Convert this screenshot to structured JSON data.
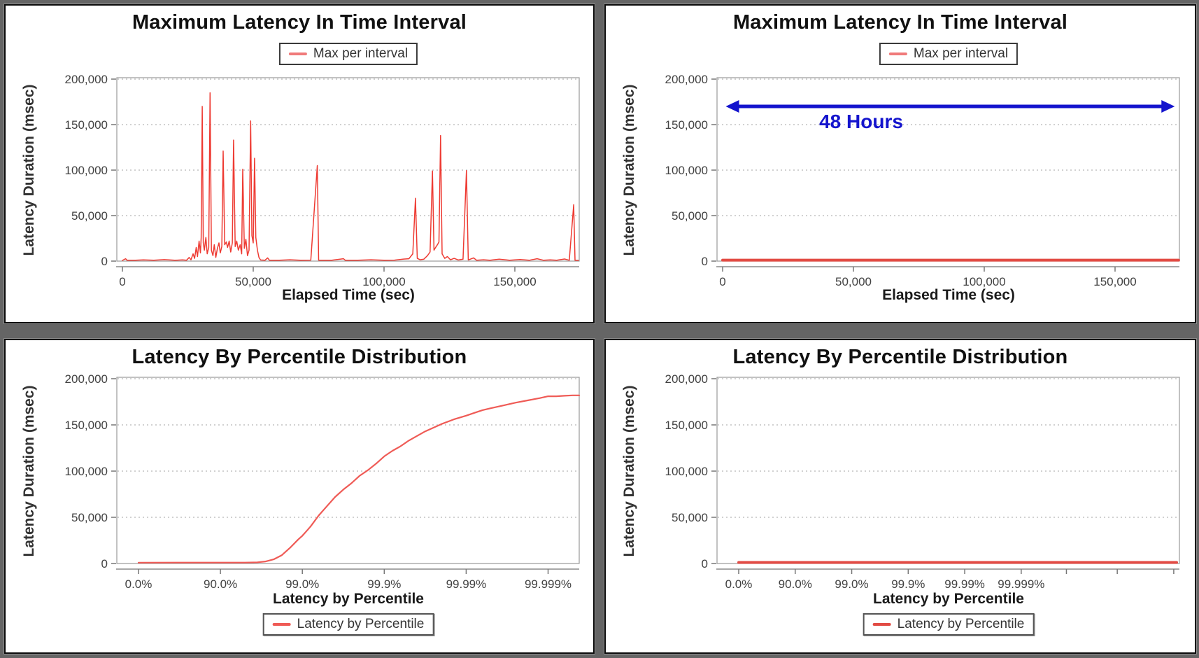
{
  "page": {
    "background": "#656565",
    "panel_background": "#ffffff",
    "panel_count": 4,
    "description_colors": {
      "spike_red": "#ee3b33",
      "flat_line_red": "#e24b44",
      "curve_red": "#ef5b56",
      "legend_swatch_red": "#f07a7a",
      "annotation_blue": "#1414cd"
    }
  },
  "chart_data": [
    {
      "id": "max-latency-interval-left",
      "type": "line",
      "title": "Maximum Latency In Time Interval",
      "legend": {
        "label": "Max per interval",
        "position": "top",
        "swatch_color": "#f07a7a"
      },
      "xlabel": "Elapsed Time (sec)",
      "ylabel": "Latency Duration (msec)",
      "x_unit": "seconds",
      "y_unit": "msec",
      "xlim": [
        0,
        174600
      ],
      "ylim": [
        0,
        200000
      ],
      "grid": "horizontal-dotted",
      "x_ticks": [
        {
          "v": 0,
          "label": "0"
        },
        {
          "v": 50000,
          "label": "50,000"
        },
        {
          "v": 100000,
          "label": "100,000"
        },
        {
          "v": 150000,
          "label": "150,000"
        }
      ],
      "y_ticks": [
        {
          "v": 0,
          "label": "0"
        },
        {
          "v": 50000,
          "label": "50,000"
        },
        {
          "v": 100000,
          "label": "100,000"
        },
        {
          "v": 150000,
          "label": "150,000"
        },
        {
          "v": 200000,
          "label": "200,000"
        }
      ],
      "line_color": "#ee3b33",
      "line_width": 1.5,
      "points": [
        [
          0,
          800
        ],
        [
          1200,
          2600
        ],
        [
          1800,
          900
        ],
        [
          5000,
          900
        ],
        [
          8000,
          1400
        ],
        [
          12000,
          900
        ],
        [
          16000,
          1600
        ],
        [
          20000,
          900
        ],
        [
          23000,
          1300
        ],
        [
          24500,
          900
        ],
        [
          25500,
          4000
        ],
        [
          26200,
          1500
        ],
        [
          27000,
          8000
        ],
        [
          27600,
          3000
        ],
        [
          28200,
          15000
        ],
        [
          28700,
          5000
        ],
        [
          29300,
          22000
        ],
        [
          29800,
          9000
        ],
        [
          30100,
          26000
        ],
        [
          30500,
          170000
        ],
        [
          30900,
          20000
        ],
        [
          31300,
          12000
        ],
        [
          31900,
          26000
        ],
        [
          32400,
          8000
        ],
        [
          33000,
          15000
        ],
        [
          33500,
          185000
        ],
        [
          34000,
          12000
        ],
        [
          34600,
          6000
        ],
        [
          35100,
          18000
        ],
        [
          35700,
          4000
        ],
        [
          36300,
          14000
        ],
        [
          36900,
          20000
        ],
        [
          37400,
          9000
        ],
        [
          38000,
          16000
        ],
        [
          38500,
          121000
        ],
        [
          39100,
          18000
        ],
        [
          39700,
          21000
        ],
        [
          40200,
          15000
        ],
        [
          40800,
          22000
        ],
        [
          41400,
          10000
        ],
        [
          42000,
          20000
        ],
        [
          42500,
          133000
        ],
        [
          43100,
          16000
        ],
        [
          43700,
          22000
        ],
        [
          44300,
          12000
        ],
        [
          45000,
          18000
        ],
        [
          45600,
          8000
        ],
        [
          46000,
          101000
        ],
        [
          46600,
          14000
        ],
        [
          47200,
          24000
        ],
        [
          47800,
          6000
        ],
        [
          48400,
          12000
        ],
        [
          49000,
          154000
        ],
        [
          49500,
          28000
        ],
        [
          50000,
          20000
        ],
        [
          50500,
          113000
        ],
        [
          51000,
          26000
        ],
        [
          51600,
          12000
        ],
        [
          52200,
          4000
        ],
        [
          52800,
          1200
        ],
        [
          54500,
          900
        ],
        [
          55500,
          3500
        ],
        [
          56200,
          900
        ],
        [
          60000,
          900
        ],
        [
          64000,
          1500
        ],
        [
          68000,
          900
        ],
        [
          72000,
          1100
        ],
        [
          74500,
          105000
        ],
        [
          75000,
          900
        ],
        [
          80000,
          900
        ],
        [
          84500,
          2600
        ],
        [
          85200,
          900
        ],
        [
          90000,
          900
        ],
        [
          95000,
          1500
        ],
        [
          100000,
          900
        ],
        [
          104000,
          1100
        ],
        [
          107500,
          2200
        ],
        [
          109500,
          2600
        ],
        [
          111000,
          8000
        ],
        [
          112000,
          69000
        ],
        [
          112700,
          3000
        ],
        [
          113800,
          1500
        ],
        [
          115200,
          2100
        ],
        [
          116600,
          6000
        ],
        [
          117600,
          10000
        ],
        [
          118500,
          99000
        ],
        [
          119100,
          12000
        ],
        [
          119700,
          15000
        ],
        [
          120400,
          18000
        ],
        [
          121000,
          21000
        ],
        [
          121600,
          138000
        ],
        [
          122200,
          8000
        ],
        [
          123200,
          3000
        ],
        [
          124200,
          5000
        ],
        [
          125400,
          1500
        ],
        [
          126800,
          3000
        ],
        [
          128400,
          1200
        ],
        [
          130200,
          2100
        ],
        [
          131500,
          99500
        ],
        [
          132200,
          1200
        ],
        [
          134200,
          3500
        ],
        [
          135400,
          900
        ],
        [
          138000,
          1500
        ],
        [
          140500,
          900
        ],
        [
          144000,
          2100
        ],
        [
          148000,
          900
        ],
        [
          152000,
          1800
        ],
        [
          155500,
          900
        ],
        [
          158500,
          2600
        ],
        [
          161000,
          900
        ],
        [
          163500,
          1300
        ],
        [
          166000,
          900
        ],
        [
          169000,
          2300
        ],
        [
          170800,
          900
        ],
        [
          172500,
          62000
        ],
        [
          173000,
          900
        ],
        [
          174300,
          800
        ]
      ]
    },
    {
      "id": "max-latency-interval-right",
      "type": "line",
      "title": "Maximum Latency In Time Interval",
      "legend": {
        "label": "Max per interval",
        "position": "top",
        "swatch_color": "#f07a7a"
      },
      "xlabel": "Elapsed Time (sec)",
      "ylabel": "Latency Duration (msec)",
      "x_unit": "seconds",
      "y_unit": "msec",
      "xlim": [
        0,
        174600
      ],
      "ylim": [
        0,
        200000
      ],
      "grid": "horizontal-dotted",
      "x_ticks": [
        {
          "v": 0,
          "label": "0"
        },
        {
          "v": 50000,
          "label": "50,000"
        },
        {
          "v": 100000,
          "label": "100,000"
        },
        {
          "v": 150000,
          "label": "150,000"
        }
      ],
      "y_ticks": [
        {
          "v": 0,
          "label": "0"
        },
        {
          "v": 50000,
          "label": "50,000"
        },
        {
          "v": 100000,
          "label": "100,000"
        },
        {
          "v": 150000,
          "label": "150,000"
        },
        {
          "v": 200000,
          "label": "200,000"
        }
      ],
      "line_color": "#e24b44",
      "line_width": 4,
      "points": [
        [
          0,
          1100
        ],
        [
          174300,
          1100
        ]
      ],
      "annotation": {
        "type": "double-headed-arrow",
        "text": "48 Hours",
        "color": "#1414cd",
        "arrow_y": 170000,
        "arrow_x_from": 1200,
        "arrow_x_to": 172800
      }
    },
    {
      "id": "latency-percentile-left",
      "type": "line",
      "title": "Latency By Percentile Distribution",
      "legend": {
        "label": "Latency by Percentile",
        "position": "bottom",
        "swatch_color": "#ef5b56"
      },
      "xlabel": "Latency by Percentile",
      "ylabel": "Latency Duration (msec)",
      "x_unit": "percentile; axis position is -log10(1-p) in decades",
      "y_unit": "msec",
      "xlim": [
        0,
        5.38
      ],
      "ylim": [
        0,
        200000
      ],
      "grid": "horizontal-dotted",
      "x_ticks": [
        {
          "v": 0,
          "label": "0.0%"
        },
        {
          "v": 1,
          "label": "90.0%"
        },
        {
          "v": 2,
          "label": "99.0%"
        },
        {
          "v": 3,
          "label": "99.9%"
        },
        {
          "v": 4,
          "label": "99.99%"
        },
        {
          "v": 5,
          "label": "99.999%"
        }
      ],
      "y_ticks": [
        {
          "v": 0,
          "label": "0"
        },
        {
          "v": 50000,
          "label": "50,000"
        },
        {
          "v": 100000,
          "label": "100,000"
        },
        {
          "v": 150000,
          "label": "150,000"
        },
        {
          "v": 200000,
          "label": "200,000"
        }
      ],
      "line_color": "#ef5b56",
      "line_width": 2.2,
      "points": [
        [
          0,
          900
        ],
        [
          0.5,
          950
        ],
        [
          1.0,
          1000
        ],
        [
          1.3,
          1000
        ],
        [
          1.45,
          1300
        ],
        [
          1.55,
          2200
        ],
        [
          1.65,
          4500
        ],
        [
          1.75,
          9000
        ],
        [
          1.85,
          17000
        ],
        [
          1.95,
          26000
        ],
        [
          2.0,
          30000
        ],
        [
          2.05,
          35000
        ],
        [
          2.1,
          40000
        ],
        [
          2.2,
          52000
        ],
        [
          2.3,
          62000
        ],
        [
          2.4,
          72000
        ],
        [
          2.5,
          80000
        ],
        [
          2.6,
          87000
        ],
        [
          2.7,
          95000
        ],
        [
          2.8,
          101000
        ],
        [
          2.9,
          108000
        ],
        [
          3.0,
          116000
        ],
        [
          3.1,
          122000
        ],
        [
          3.2,
          127000
        ],
        [
          3.3,
          133000
        ],
        [
          3.4,
          138000
        ],
        [
          3.5,
          143000
        ],
        [
          3.6,
          147000
        ],
        [
          3.7,
          151000
        ],
        [
          3.85,
          156000
        ],
        [
          4.0,
          160000
        ],
        [
          4.1,
          163000
        ],
        [
          4.2,
          166000
        ],
        [
          4.3,
          168000
        ],
        [
          4.45,
          171000
        ],
        [
          4.6,
          174000
        ],
        [
          4.75,
          176500
        ],
        [
          4.9,
          179000
        ],
        [
          5.0,
          181000
        ],
        [
          5.1,
          181000
        ],
        [
          5.2,
          181500
        ],
        [
          5.3,
          182000
        ],
        [
          5.38,
          182000
        ]
      ]
    },
    {
      "id": "latency-percentile-right",
      "type": "line",
      "title": "Latency By Percentile Distribution",
      "legend": {
        "label": "Latency by Percentile",
        "position": "bottom",
        "swatch_color": "#e24b44"
      },
      "xlabel": "Latency by Percentile",
      "ylabel": "Latency Duration (msec)",
      "x_unit": "percentile; axis position is -log10(1-p) in decades",
      "y_unit": "msec",
      "xlim": [
        0,
        7.8
      ],
      "ylim": [
        0,
        200000
      ],
      "grid": "horizontal-dotted",
      "x_ticks": [
        {
          "v": 0,
          "label": "0.0%"
        },
        {
          "v": 1,
          "label": "90.0%"
        },
        {
          "v": 2,
          "label": "99.0%"
        },
        {
          "v": 3,
          "label": "99.9%"
        },
        {
          "v": 4,
          "label": "99.99%"
        },
        {
          "v": 5,
          "label": "99.999%"
        },
        {
          "v": 5.8,
          "label": ""
        },
        {
          "v": 6.7,
          "label": ""
        },
        {
          "v": 7.7,
          "label": ""
        }
      ],
      "y_ticks": [
        {
          "v": 0,
          "label": "0"
        },
        {
          "v": 50000,
          "label": "50,000"
        },
        {
          "v": 100000,
          "label": "100,000"
        },
        {
          "v": 150000,
          "label": "150,000"
        },
        {
          "v": 200000,
          "label": "200,000"
        }
      ],
      "line_color": "#e24b44",
      "line_width": 4,
      "points": [
        [
          0,
          1100
        ],
        [
          7.75,
          1100
        ]
      ]
    }
  ]
}
